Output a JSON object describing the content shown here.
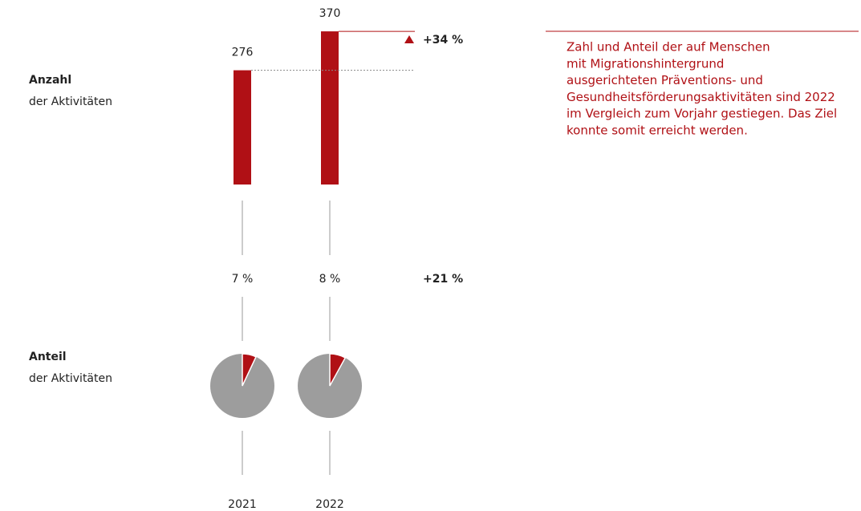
{
  "chart_data": [
    {
      "type": "bar",
      "label": "Anzahl",
      "sublabel": "der Aktivitäten",
      "values": [
        276,
        370
      ],
      "color": "#b01015",
      "change": "+34 %"
    },
    {
      "type": "pie",
      "label": "Anteil",
      "sublabel": "der Aktivitäten",
      "categories": [
        "2021",
        "2022"
      ],
      "values": [
        7,
        8
      ],
      "value_labels": [
        "7 %",
        "8 %"
      ],
      "color": "#b01015",
      "rest_color": "#9d9d9d",
      "change": "+21 %"
    }
  ],
  "description": [
    "Zahl und Anteil der auf Menschen",
    "mit Migrationshintergrund",
    "ausgerichteten Präventions- und",
    "Gesundheitsförderungsaktivitäten sind 2022",
    "im Vergleich zum Vorjahr gestiegen. Das Ziel",
    "konnte somit erreicht werden."
  ]
}
